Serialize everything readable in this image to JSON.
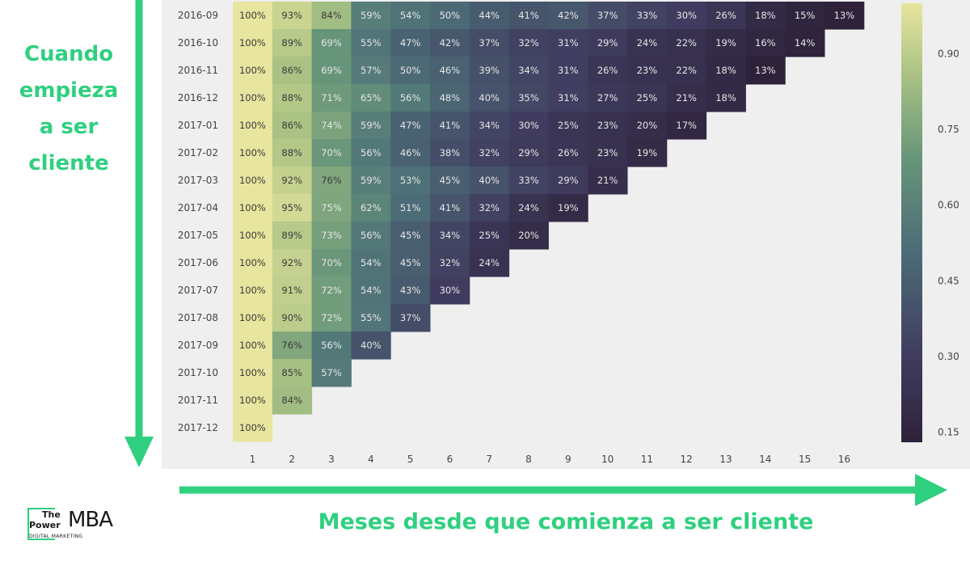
{
  "labels": {
    "left_lines": [
      "Cuando",
      "empieza",
      "a ser",
      "cliente"
    ],
    "bottom": "Meses desde que comienza a ser cliente"
  },
  "logo": {
    "the": "The",
    "power": "Power",
    "mba": "MBA",
    "sub": "DIGITAL MARKETING"
  },
  "colors": {
    "accent": "#2fd07f",
    "panel_bg": "#efefef"
  },
  "chart_data": {
    "type": "heatmap",
    "rows": [
      "2016-09",
      "2016-10",
      "2016-11",
      "2016-12",
      "2017-01",
      "2017-02",
      "2017-03",
      "2017-04",
      "2017-05",
      "2017-06",
      "2017-07",
      "2017-08",
      "2017-09",
      "2017-10",
      "2017-11",
      "2017-12"
    ],
    "columns": [
      "1",
      "2",
      "3",
      "4",
      "5",
      "6",
      "7",
      "8",
      "9",
      "10",
      "11",
      "12",
      "13",
      "14",
      "15",
      "16"
    ],
    "values": [
      [
        100,
        93,
        84,
        59,
        54,
        50,
        44,
        41,
        42,
        37,
        33,
        30,
        26,
        18,
        15,
        13
      ],
      [
        100,
        89,
        69,
        55,
        47,
        42,
        37,
        32,
        31,
        29,
        24,
        22,
        19,
        16,
        14
      ],
      [
        100,
        86,
        69,
        57,
        50,
        46,
        39,
        34,
        31,
        26,
        23,
        22,
        18,
        13
      ],
      [
        100,
        88,
        71,
        65,
        56,
        48,
        40,
        35,
        31,
        27,
        25,
        21,
        18
      ],
      [
        100,
        86,
        74,
        59,
        47,
        41,
        34,
        30,
        25,
        23,
        20,
        17
      ],
      [
        100,
        88,
        70,
        56,
        46,
        38,
        32,
        29,
        26,
        23,
        19
      ],
      [
        100,
        92,
        76,
        59,
        53,
        45,
        40,
        33,
        29,
        21
      ],
      [
        100,
        95,
        75,
        62,
        51,
        41,
        32,
        24,
        19
      ],
      [
        100,
        89,
        73,
        56,
        45,
        34,
        25,
        20
      ],
      [
        100,
        92,
        70,
        54,
        45,
        32,
        24
      ],
      [
        100,
        91,
        72,
        54,
        43,
        30
      ],
      [
        100,
        90,
        72,
        55,
        37
      ],
      [
        100,
        76,
        56,
        40
      ],
      [
        100,
        85,
        57
      ],
      [
        100,
        84
      ],
      [
        100
      ]
    ],
    "value_format": "%",
    "colorbar": {
      "ticks": [
        "0.90",
        "0.75",
        "0.60",
        "0.45",
        "0.30",
        "0.15"
      ],
      "range": [
        0.13,
        1.0
      ]
    }
  }
}
